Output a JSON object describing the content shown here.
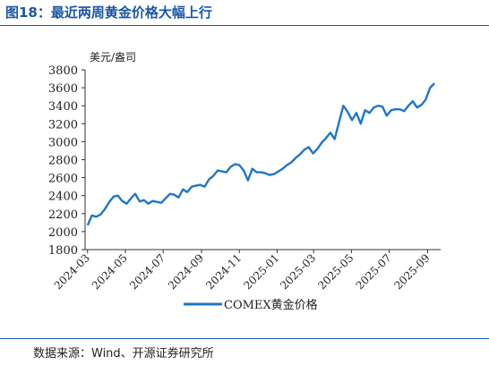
{
  "figure_title": "图18：最近两周黄金价格大幅上行",
  "source_note": "数据来源：Wind、开源证券研究所",
  "chart_data": {
    "type": "line",
    "unit_label": "美元/盎司",
    "ylim": [
      1800,
      3800
    ],
    "yticks": [
      "1800",
      "2000",
      "2200",
      "2400",
      "2600",
      "2800",
      "3000",
      "3200",
      "3400",
      "3600",
      "3800"
    ],
    "xticks": [
      "2024-03",
      "2024-05",
      "2024-07",
      "2024-09",
      "2024-11",
      "2025-01",
      "2025-03",
      "2025-05",
      "2025-07",
      "2025-09"
    ],
    "grid": false,
    "legend": "bottom-center",
    "series": [
      {
        "name": "COMEX黄金价格",
        "color": "#1f77c4",
        "x": [
          "2024-03-01",
          "2024-03-08",
          "2024-03-15",
          "2024-03-22",
          "2024-03-29",
          "2024-04-05",
          "2024-04-12",
          "2024-04-19",
          "2024-04-26",
          "2024-05-03",
          "2024-05-10",
          "2024-05-17",
          "2024-05-24",
          "2024-05-31",
          "2024-06-07",
          "2024-06-14",
          "2024-06-21",
          "2024-06-28",
          "2024-07-05",
          "2024-07-12",
          "2024-07-19",
          "2024-07-26",
          "2024-08-02",
          "2024-08-09",
          "2024-08-16",
          "2024-08-23",
          "2024-08-30",
          "2024-09-06",
          "2024-09-13",
          "2024-09-20",
          "2024-09-27",
          "2024-10-04",
          "2024-10-11",
          "2024-10-18",
          "2024-10-25",
          "2024-11-01",
          "2024-11-08",
          "2024-11-15",
          "2024-11-22",
          "2024-11-29",
          "2024-12-06",
          "2024-12-13",
          "2024-12-20",
          "2024-12-27",
          "2025-01-03",
          "2025-01-10",
          "2025-01-17",
          "2025-01-24",
          "2025-01-31",
          "2025-02-07",
          "2025-02-14",
          "2025-02-21",
          "2025-02-28",
          "2025-03-07",
          "2025-03-14",
          "2025-03-21",
          "2025-03-28",
          "2025-04-04",
          "2025-04-11",
          "2025-04-18",
          "2025-04-25",
          "2025-05-02",
          "2025-05-09",
          "2025-05-16",
          "2025-05-23",
          "2025-05-30",
          "2025-06-06",
          "2025-06-13",
          "2025-06-20",
          "2025-06-27",
          "2025-07-04",
          "2025-07-11",
          "2025-07-18",
          "2025-07-25",
          "2025-08-01",
          "2025-08-08",
          "2025-08-15",
          "2025-08-22",
          "2025-08-29",
          "2025-09-05",
          "2025-09-12"
        ],
        "values": [
          2070,
          2180,
          2165,
          2190,
          2250,
          2330,
          2390,
          2400,
          2340,
          2310,
          2370,
          2420,
          2335,
          2350,
          2310,
          2340,
          2330,
          2320,
          2370,
          2420,
          2410,
          2380,
          2470,
          2440,
          2500,
          2510,
          2520,
          2500,
          2580,
          2620,
          2680,
          2670,
          2660,
          2720,
          2750,
          2740,
          2680,
          2570,
          2700,
          2660,
          2660,
          2650,
          2630,
          2640,
          2670,
          2700,
          2740,
          2770,
          2820,
          2860,
          2910,
          2940,
          2870,
          2920,
          2990,
          3040,
          3100,
          3030,
          3220,
          3400,
          3330,
          3240,
          3320,
          3200,
          3350,
          3320,
          3380,
          3400,
          3390,
          3290,
          3350,
          3360,
          3360,
          3340,
          3400,
          3450,
          3380,
          3410,
          3470,
          3600,
          3650
        ]
      }
    ]
  }
}
